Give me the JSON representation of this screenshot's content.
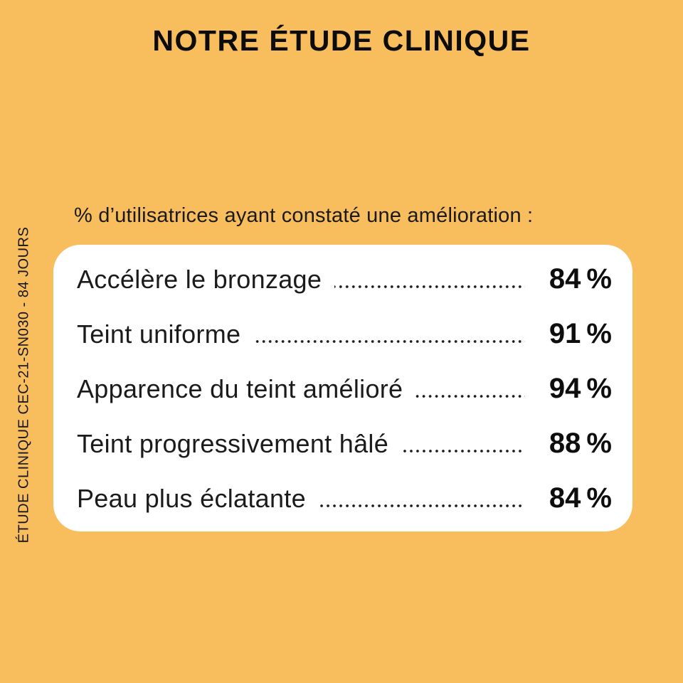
{
  "canvas": {
    "background_color": "#F8BD5C",
    "card_color": "#FFFFFF",
    "text_color": "#131313"
  },
  "header": {
    "title": "NOTRE ÉTUDE CLINIQUE"
  },
  "study": {
    "subtitle": "% d’utilisatrices ayant constaté une amélioration :",
    "results": [
      {
        "label": "Accélère le bronzage",
        "value": "84 %"
      },
      {
        "label": "Teint uniforme",
        "value": "91 %"
      },
      {
        "label": "Apparence du teint amélioré",
        "value": "94 %"
      },
      {
        "label": "Teint progressivement hâlé",
        "value": "88 %"
      },
      {
        "label": "Peau plus éclatante",
        "value": "84 %"
      }
    ]
  },
  "sidebar_note": "ÉTUDE CLINIQUE CEC-21-SN030 - 84 JOURS",
  "chart_data": {
    "type": "table",
    "title": "NOTRE ÉTUDE CLINIQUE",
    "subtitle": "% d’utilisatrices ayant constaté une amélioration :",
    "categories": [
      "Accélère le bronzage",
      "Teint uniforme",
      "Apparence du teint amélioré",
      "Teint progressivement hâlé",
      "Peau plus éclatante"
    ],
    "values": [
      84,
      91,
      94,
      88,
      84
    ],
    "unit": "%",
    "footnote": "ÉTUDE CLINIQUE CEC-21-SN030 - 84 JOURS",
    "layout": "label-left, dotted leader, bold percentage right-aligned, on white rounded card over amber background"
  }
}
